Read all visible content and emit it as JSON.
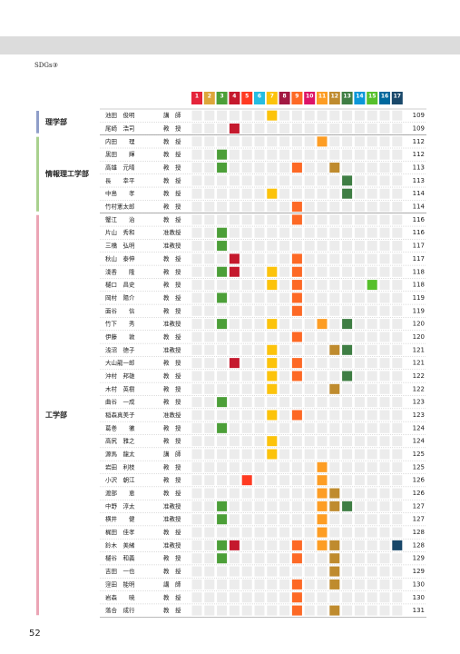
{
  "header": {
    "section": "SDGs③"
  },
  "sdg_header": {
    "numbers": [
      1,
      2,
      3,
      4,
      5,
      6,
      7,
      8,
      9,
      10,
      11,
      12,
      13,
      14,
      15,
      16,
      17
    ],
    "colors": [
      "#e5243b",
      "#dda63a",
      "#4c9f38",
      "#c5192d",
      "#ff3a21",
      "#26bde2",
      "#fcc30b",
      "#a21942",
      "#fd6925",
      "#dd1367",
      "#fd9d24",
      "#bf8b2e",
      "#3f7e44",
      "#0a97d9",
      "#56c02b",
      "#00689d",
      "#19486a"
    ]
  },
  "table": {
    "groups": [
      {
        "department": "理学部",
        "color": "#8f9ec9",
        "rows": [
          {
            "name": "池田　俊明",
            "title": "講　師",
            "page": 109,
            "sdgs": [
              7
            ]
          },
          {
            "name": "尾崎　浩司",
            "title": "教　授",
            "page": 109,
            "sdgs": [
              4
            ]
          }
        ]
      },
      {
        "department": "情報理工学部",
        "color": "#a9d18e",
        "rows": [
          {
            "name": "内田　　理",
            "title": "教　授",
            "page": 112,
            "sdgs": [
              11
            ]
          },
          {
            "name": "黒田　　輝",
            "title": "教　授",
            "page": 112,
            "sdgs": [
              3
            ]
          },
          {
            "name": "高雄　元晴",
            "title": "教　授",
            "page": 113,
            "sdgs": [
              3,
              9,
              12
            ]
          },
          {
            "name": "長　　幸平",
            "title": "教　授",
            "page": 113,
            "sdgs": [
              13
            ]
          },
          {
            "name": "中島　　孝",
            "title": "教　授",
            "page": 114,
            "sdgs": [
              7,
              13
            ]
          },
          {
            "name": "竹村憲太郎",
            "title": "教　授",
            "page": 114,
            "sdgs": [
              9
            ]
          }
        ]
      },
      {
        "department": "工学部",
        "color": "#eba5b5",
        "rows": [
          {
            "name": "蟹江　　治",
            "title": "教　授",
            "page": 116,
            "sdgs": [
              9
            ]
          },
          {
            "name": "片山　秀和",
            "title": "准教授",
            "page": 116,
            "sdgs": [
              3
            ]
          },
          {
            "name": "三橋　弘明",
            "title": "准教授",
            "page": 117,
            "sdgs": [
              3
            ]
          },
          {
            "name": "秋山　泰伸",
            "title": "教　授",
            "page": 117,
            "sdgs": [
              4,
              9
            ]
          },
          {
            "name": "淺香　　隆",
            "title": "教　授",
            "page": 118,
            "sdgs": [
              3,
              4,
              7,
              9
            ]
          },
          {
            "name": "樋口　昌史",
            "title": "教　授",
            "page": 118,
            "sdgs": [
              7,
              9,
              15
            ]
          },
          {
            "name": "岡村　陽介",
            "title": "教　授",
            "page": 119,
            "sdgs": [
              3,
              9
            ]
          },
          {
            "name": "面谷　　信",
            "title": "教　授",
            "page": 119,
            "sdgs": [
              9
            ]
          },
          {
            "name": "竹下　　秀",
            "title": "准教授",
            "page": 120,
            "sdgs": [
              3,
              7,
              11,
              13
            ]
          },
          {
            "name": "伊藤　　敦",
            "title": "教　授",
            "page": 120,
            "sdgs": [
              9
            ]
          },
          {
            "name": "浅沼　徳子",
            "title": "准教授",
            "page": 121,
            "sdgs": [
              7,
              12,
              13
            ]
          },
          {
            "name": "大山龍一郎",
            "title": "教　授",
            "page": 121,
            "sdgs": [
              4,
              7,
              9
            ]
          },
          {
            "name": "沖村　邦雄",
            "title": "教　授",
            "page": 122,
            "sdgs": [
              7,
              9,
              13
            ]
          },
          {
            "name": "木村　英樹",
            "title": "教　授",
            "page": 122,
            "sdgs": [
              7,
              12
            ]
          },
          {
            "name": "曲谷　一成",
            "title": "教　授",
            "page": 123,
            "sdgs": [
              3
            ]
          },
          {
            "name": "稲森真美子",
            "title": "准教授",
            "page": 123,
            "sdgs": [
              7,
              9
            ]
          },
          {
            "name": "葛巻　　徹",
            "title": "教　授",
            "page": 124,
            "sdgs": [
              3
            ]
          },
          {
            "name": "高尻　雅之",
            "title": "教　授",
            "page": 124,
            "sdgs": [
              7
            ]
          },
          {
            "name": "源馬　龍太",
            "title": "講　師",
            "page": 125,
            "sdgs": [
              7
            ]
          },
          {
            "name": "岩田　利枝",
            "title": "教　授",
            "page": 125,
            "sdgs": [
              11
            ]
          },
          {
            "name": "小沢　朝江",
            "title": "教　授",
            "page": 126,
            "sdgs": [
              5,
              11
            ]
          },
          {
            "name": "渡部　　恵",
            "title": "教　授",
            "page": 126,
            "sdgs": [
              11,
              12
            ]
          },
          {
            "name": "中野　淳太",
            "title": "准教授",
            "page": 127,
            "sdgs": [
              3,
              11,
              12,
              13
            ]
          },
          {
            "name": "横井　　健",
            "title": "准教授",
            "page": 127,
            "sdgs": [
              3,
              11
            ]
          },
          {
            "name": "梶田　佳孝",
            "title": "教　授",
            "page": 128,
            "sdgs": [
              11
            ]
          },
          {
            "name": "鈴木　美緒",
            "title": "准教授",
            "page": 128,
            "sdgs": [
              3,
              4,
              9,
              11,
              12,
              17
            ]
          },
          {
            "name": "樋谷　和義",
            "title": "教　授",
            "page": 129,
            "sdgs": [
              3,
              9,
              12
            ]
          },
          {
            "name": "吉田　一也",
            "title": "教　授",
            "page": 129,
            "sdgs": [
              12
            ]
          },
          {
            "name": "窪田　能明",
            "title": "講　師",
            "page": 130,
            "sdgs": [
              9,
              12
            ]
          },
          {
            "name": "岩森　　暁",
            "title": "教　授",
            "page": 130,
            "sdgs": [
              9
            ]
          },
          {
            "name": "落合　成行",
            "title": "教　授",
            "page": 131,
            "sdgs": [
              9,
              12
            ]
          }
        ]
      }
    ]
  },
  "page_number": 52
}
